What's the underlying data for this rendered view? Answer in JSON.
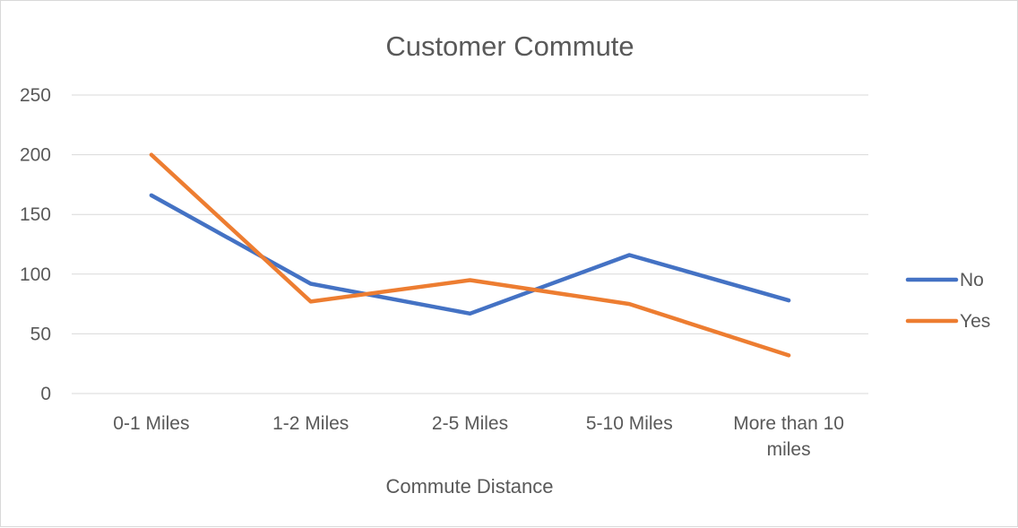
{
  "chart_data": {
    "type": "line",
    "title": "Customer Commute",
    "xlabel": "Commute Distance",
    "ylabel": "",
    "categories": [
      [
        "0-1 Miles"
      ],
      [
        "1-2 Miles"
      ],
      [
        "2-5 Miles"
      ],
      [
        "5-10 Miles"
      ],
      [
        "More than 10",
        "miles"
      ]
    ],
    "ylim": [
      0,
      250
    ],
    "yticks": [
      "0",
      "50",
      "100",
      "150",
      "200",
      "250"
    ],
    "grid": true,
    "legend_position": "right",
    "series": [
      {
        "name": "No",
        "color": "#4472C4",
        "values": [
          166,
          92,
          67,
          116,
          78
        ]
      },
      {
        "name": "Yes",
        "color": "#ED7D31",
        "values": [
          200,
          77,
          95,
          75,
          32
        ]
      }
    ]
  }
}
